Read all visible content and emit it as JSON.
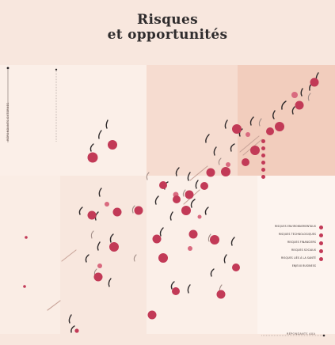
{
  "title": {
    "line1": "Risques",
    "line2": "et opportunités"
  },
  "axes": {
    "y_label": "RÉPONDANTS EXTERNES",
    "y_label_inner": "",
    "x_label": "RÉPONDANTS AXA"
  },
  "legend": {
    "items": [
      {
        "label": "RISQUES ENVIRONNEMENTAUX"
      },
      {
        "label": "RISQUES TECHNOLOGIQUES"
      },
      {
        "label": "RISQUES FINANCIERS"
      },
      {
        "label": "RISQUES SOCIAUX"
      },
      {
        "label": "RISQUES LIÉS À LA SANTÉ"
      },
      {
        "label": "ENJEUX BUSINESS"
      }
    ]
  },
  "colors": {
    "background": "#f8e7de",
    "quadrant_light": "#fbefe8",
    "quadrant_mid": "#f6d8ca",
    "quadrant_dark": "#f1c6b4",
    "dot": "#c23a57",
    "accent": "#d96a7f",
    "squiggle": "#2f2a2b",
    "squiggle_mid": "#8a7a76"
  }
}
